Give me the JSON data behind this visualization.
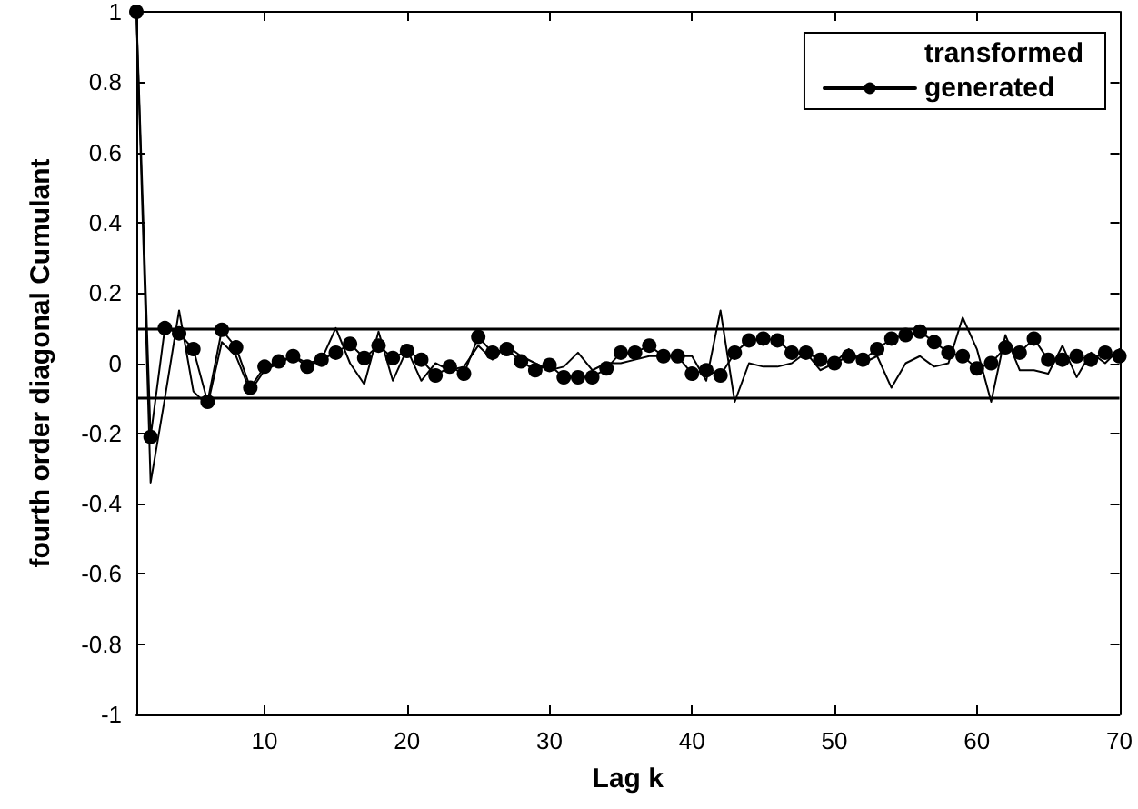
{
  "chart_data": {
    "type": "line",
    "xlabel": "Lag k",
    "ylabel": "fourth order diagonal Cumulant",
    "x": [
      1,
      2,
      3,
      4,
      5,
      6,
      7,
      8,
      9,
      10,
      11,
      12,
      13,
      14,
      15,
      16,
      17,
      18,
      19,
      20,
      21,
      22,
      23,
      24,
      25,
      26,
      27,
      28,
      29,
      30,
      31,
      32,
      33,
      34,
      35,
      36,
      37,
      38,
      39,
      40,
      41,
      42,
      43,
      44,
      45,
      46,
      47,
      48,
      49,
      50,
      51,
      52,
      53,
      54,
      55,
      56,
      57,
      58,
      59,
      60,
      61,
      62,
      63,
      64,
      65,
      66,
      67,
      68,
      69,
      70
    ],
    "series": [
      {
        "name": "transformed",
        "color": "#000000",
        "marker": "none",
        "values": [
          1,
          -0.34,
          -0.1,
          0.15,
          -0.08,
          -0.12,
          0.06,
          0.02,
          -0.08,
          -0.02,
          0,
          0.02,
          0,
          0.01,
          0.1,
          0,
          -0.06,
          0.09,
          -0.05,
          0.04,
          -0.05,
          0,
          -0.02,
          -0.01,
          0.05,
          0.01,
          0.05,
          0.02,
          0,
          -0.02,
          -0.01,
          0.03,
          -0.02,
          0,
          0,
          0.01,
          0.02,
          0.02,
          0.02,
          0.02,
          -0.05,
          0.15,
          -0.11,
          0,
          -0.01,
          -0.01,
          0,
          0.03,
          -0.02,
          0,
          0.04,
          0,
          0.02,
          -0.07,
          0,
          0.02,
          -0.01,
          0,
          0.13,
          0.04,
          -0.11,
          0.08,
          -0.02,
          -0.02,
          -0.03,
          0.05,
          -0.04,
          0.03,
          0,
          0.04
        ]
      },
      {
        "name": "generated",
        "color": "#000000",
        "marker": "circle",
        "values": [
          1,
          -0.21,
          0.1,
          0.085,
          0.04,
          -0.11,
          0.095,
          0.045,
          -0.07,
          -0.01,
          0.005,
          0.02,
          -0.01,
          0.01,
          0.03,
          0.055,
          0.015,
          0.05,
          0.015,
          0.035,
          0.01,
          -0.035,
          -0.01,
          -0.03,
          0.075,
          0.03,
          0.04,
          0.005,
          -0.02,
          -0.005,
          -0.04,
          -0.04,
          -0.04,
          -0.015,
          0.03,
          0.03,
          0.05,
          0.02,
          0.02,
          -0.03,
          -0.02,
          -0.035,
          0.03,
          0.065,
          0.07,
          0.065,
          0.03,
          0.03,
          0.01,
          0,
          0.02,
          0.01,
          0.04,
          0.07,
          0.08,
          0.09,
          0.06,
          0.03,
          0.02,
          -0.015,
          0,
          0.045,
          0.03,
          0.07,
          0.01,
          0.01,
          0.02,
          0.01,
          0.03,
          0.02
        ]
      }
    ],
    "xlim": [
      1,
      70
    ],
    "xticks": [
      10,
      20,
      30,
      40,
      50,
      60,
      70
    ],
    "ylim": [
      -1,
      1
    ],
    "yticks": [
      -1,
      -0.8,
      -0.6,
      -0.4,
      -0.2,
      0,
      0.2,
      0.4,
      0.6,
      0.8,
      1
    ],
    "ref_lines": [
      {
        "axis": "y",
        "value": 0.1,
        "color": "#000000"
      },
      {
        "axis": "y",
        "value": -0.1,
        "color": "#000000"
      }
    ],
    "grid": false,
    "legend": "top right"
  }
}
